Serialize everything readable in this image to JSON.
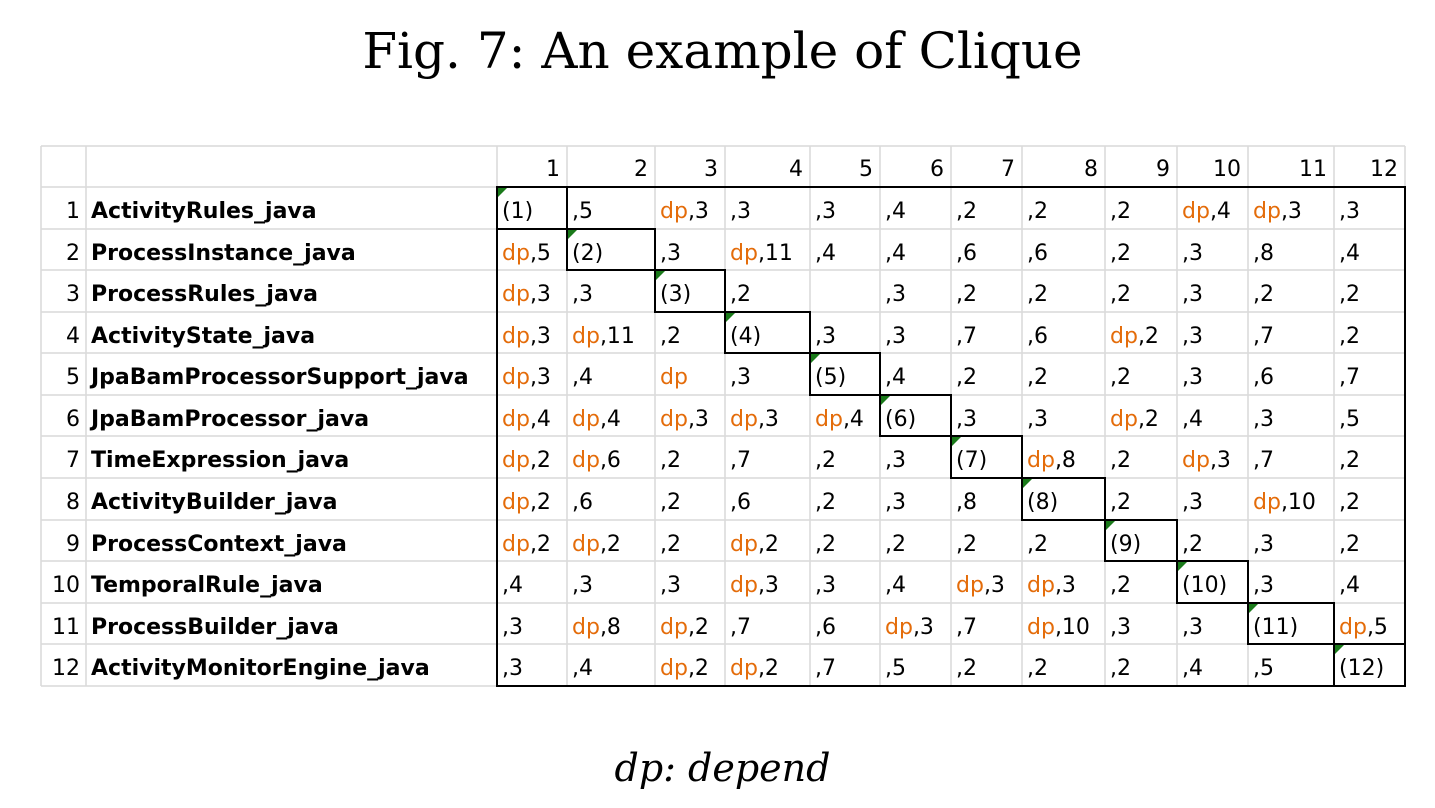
{
  "title": "Fig. 7: An example of Clique",
  "legend": "dp: depend",
  "colors": {
    "dp": "#e46c0a",
    "text": "#000000",
    "gridline": "#d9d9d9",
    "box": "#000000",
    "marker": "#1a7a1a"
  },
  "columns": [
    "1",
    "2",
    "3",
    "4",
    "5",
    "6",
    "7",
    "8",
    "9",
    "10",
    "11",
    "12"
  ],
  "rows": [
    {
      "index": "1",
      "name": "ActivityRules_java",
      "cells": [
        {
          "dp": "",
          "val": "(1)"
        },
        {
          "dp": "",
          "val": ",5"
        },
        {
          "dp": "dp",
          "val": ",3"
        },
        {
          "dp": "",
          "val": ",3"
        },
        {
          "dp": "",
          "val": ",3"
        },
        {
          "dp": "",
          "val": ",4"
        },
        {
          "dp": "",
          "val": ",2"
        },
        {
          "dp": "",
          "val": ",2"
        },
        {
          "dp": "",
          "val": ",2"
        },
        {
          "dp": "dp",
          "val": ",4"
        },
        {
          "dp": "dp",
          "val": ",3"
        },
        {
          "dp": "",
          "val": ",3"
        }
      ]
    },
    {
      "index": "2",
      "name": "ProcessInstance_java",
      "cells": [
        {
          "dp": "dp",
          "val": ",5"
        },
        {
          "dp": "",
          "val": "(2)"
        },
        {
          "dp": "",
          "val": ",3"
        },
        {
          "dp": "dp",
          "val": ",11"
        },
        {
          "dp": "",
          "val": ",4"
        },
        {
          "dp": "",
          "val": ",4"
        },
        {
          "dp": "",
          "val": ",6"
        },
        {
          "dp": "",
          "val": ",6"
        },
        {
          "dp": "",
          "val": ",2"
        },
        {
          "dp": "",
          "val": ",3"
        },
        {
          "dp": "",
          "val": ",8"
        },
        {
          "dp": "",
          "val": ",4"
        }
      ]
    },
    {
      "index": "3",
      "name": "ProcessRules_java",
      "cells": [
        {
          "dp": "dp",
          "val": ",3"
        },
        {
          "dp": "",
          "val": ",3"
        },
        {
          "dp": "",
          "val": "(3)"
        },
        {
          "dp": "",
          "val": ",2"
        },
        {
          "dp": "",
          "val": ""
        },
        {
          "dp": "",
          "val": ",3"
        },
        {
          "dp": "",
          "val": ",2"
        },
        {
          "dp": "",
          "val": ",2"
        },
        {
          "dp": "",
          "val": ",2"
        },
        {
          "dp": "",
          "val": ",3"
        },
        {
          "dp": "",
          "val": ",2"
        },
        {
          "dp": "",
          "val": ",2"
        }
      ]
    },
    {
      "index": "4",
      "name": "ActivityState_java",
      "cells": [
        {
          "dp": "dp",
          "val": ",3"
        },
        {
          "dp": "dp",
          "val": ",11"
        },
        {
          "dp": "",
          "val": ",2"
        },
        {
          "dp": "",
          "val": "(4)"
        },
        {
          "dp": "",
          "val": ",3"
        },
        {
          "dp": "",
          "val": ",3"
        },
        {
          "dp": "",
          "val": ",7"
        },
        {
          "dp": "",
          "val": ",6"
        },
        {
          "dp": "dp",
          "val": ",2"
        },
        {
          "dp": "",
          "val": ",3"
        },
        {
          "dp": "",
          "val": ",7"
        },
        {
          "dp": "",
          "val": ",2"
        }
      ]
    },
    {
      "index": "5",
      "name": "JpaBamProcessorSupport_java",
      "cells": [
        {
          "dp": "dp",
          "val": ",3"
        },
        {
          "dp": "",
          "val": ",4"
        },
        {
          "dp": "dp",
          "val": ""
        },
        {
          "dp": "",
          "val": ",3"
        },
        {
          "dp": "",
          "val": "(5)"
        },
        {
          "dp": "",
          "val": ",4"
        },
        {
          "dp": "",
          "val": ",2"
        },
        {
          "dp": "",
          "val": ",2"
        },
        {
          "dp": "",
          "val": ",2"
        },
        {
          "dp": "",
          "val": ",3"
        },
        {
          "dp": "",
          "val": ",6"
        },
        {
          "dp": "",
          "val": ",7"
        }
      ]
    },
    {
      "index": "6",
      "name": "JpaBamProcessor_java",
      "cells": [
        {
          "dp": "dp",
          "val": ",4"
        },
        {
          "dp": "dp",
          "val": ",4"
        },
        {
          "dp": "dp",
          "val": ",3"
        },
        {
          "dp": "dp",
          "val": ",3"
        },
        {
          "dp": "dp",
          "val": ",4"
        },
        {
          "dp": "",
          "val": "(6)"
        },
        {
          "dp": "",
          "val": ",3"
        },
        {
          "dp": "",
          "val": ",3"
        },
        {
          "dp": "dp",
          "val": ",2"
        },
        {
          "dp": "",
          "val": ",4"
        },
        {
          "dp": "",
          "val": ",3"
        },
        {
          "dp": "",
          "val": ",5"
        }
      ]
    },
    {
      "index": "7",
      "name": "TimeExpression_java",
      "cells": [
        {
          "dp": "dp",
          "val": ",2"
        },
        {
          "dp": "dp",
          "val": ",6"
        },
        {
          "dp": "",
          "val": ",2"
        },
        {
          "dp": "",
          "val": ",7"
        },
        {
          "dp": "",
          "val": ",2"
        },
        {
          "dp": "",
          "val": ",3"
        },
        {
          "dp": "",
          "val": "(7)"
        },
        {
          "dp": "dp",
          "val": ",8"
        },
        {
          "dp": "",
          "val": ",2"
        },
        {
          "dp": "dp",
          "val": ",3"
        },
        {
          "dp": "",
          "val": ",7"
        },
        {
          "dp": "",
          "val": ",2"
        }
      ]
    },
    {
      "index": "8",
      "name": "ActivityBuilder_java",
      "cells": [
        {
          "dp": "dp",
          "val": ",2"
        },
        {
          "dp": "",
          "val": ",6"
        },
        {
          "dp": "",
          "val": ",2"
        },
        {
          "dp": "",
          "val": ",6"
        },
        {
          "dp": "",
          "val": ",2"
        },
        {
          "dp": "",
          "val": ",3"
        },
        {
          "dp": "",
          "val": ",8"
        },
        {
          "dp": "",
          "val": "(8)"
        },
        {
          "dp": "",
          "val": ",2"
        },
        {
          "dp": "",
          "val": ",3"
        },
        {
          "dp": "dp",
          "val": ",10"
        },
        {
          "dp": "",
          "val": ",2"
        }
      ]
    },
    {
      "index": "9",
      "name": "ProcessContext_java",
      "cells": [
        {
          "dp": "dp",
          "val": ",2"
        },
        {
          "dp": "dp",
          "val": ",2"
        },
        {
          "dp": "",
          "val": ",2"
        },
        {
          "dp": "dp",
          "val": ",2"
        },
        {
          "dp": "",
          "val": ",2"
        },
        {
          "dp": "",
          "val": ",2"
        },
        {
          "dp": "",
          "val": ",2"
        },
        {
          "dp": "",
          "val": ",2"
        },
        {
          "dp": "",
          "val": "(9)"
        },
        {
          "dp": "",
          "val": ",2"
        },
        {
          "dp": "",
          "val": ",3"
        },
        {
          "dp": "",
          "val": ",2"
        }
      ]
    },
    {
      "index": "10",
      "name": "TemporalRule_java",
      "cells": [
        {
          "dp": "",
          "val": ",4"
        },
        {
          "dp": "",
          "val": ",3"
        },
        {
          "dp": "",
          "val": ",3"
        },
        {
          "dp": "dp",
          "val": ",3"
        },
        {
          "dp": "",
          "val": ",3"
        },
        {
          "dp": "",
          "val": ",4"
        },
        {
          "dp": "dp",
          "val": ",3"
        },
        {
          "dp": "dp",
          "val": ",3"
        },
        {
          "dp": "",
          "val": ",2"
        },
        {
          "dp": "",
          "val": "(10)"
        },
        {
          "dp": "",
          "val": ",3"
        },
        {
          "dp": "",
          "val": ",4"
        }
      ]
    },
    {
      "index": "11",
      "name": "ProcessBuilder_java",
      "cells": [
        {
          "dp": "",
          "val": ",3"
        },
        {
          "dp": "dp",
          "val": ",8"
        },
        {
          "dp": "dp",
          "val": ",2"
        },
        {
          "dp": "",
          "val": ",7"
        },
        {
          "dp": "",
          "val": ",6"
        },
        {
          "dp": "dp",
          "val": ",3"
        },
        {
          "dp": "",
          "val": ",7"
        },
        {
          "dp": "dp",
          "val": ",10"
        },
        {
          "dp": "",
          "val": ",3"
        },
        {
          "dp": "",
          "val": ",3"
        },
        {
          "dp": "",
          "val": "(11)"
        },
        {
          "dp": "dp",
          "val": ",5"
        }
      ]
    },
    {
      "index": "12",
      "name": "ActivityMonitorEngine_java",
      "cells": [
        {
          "dp": "",
          "val": ",3"
        },
        {
          "dp": "",
          "val": ",4"
        },
        {
          "dp": "dp",
          "val": ",2"
        },
        {
          "dp": "dp",
          "val": ",2"
        },
        {
          "dp": "",
          "val": ",7"
        },
        {
          "dp": "",
          "val": ",5"
        },
        {
          "dp": "",
          "val": ",2"
        },
        {
          "dp": "",
          "val": ",2"
        },
        {
          "dp": "",
          "val": ",2"
        },
        {
          "dp": "",
          "val": ",4"
        },
        {
          "dp": "",
          "val": ",5"
        },
        {
          "dp": "",
          "val": "(12)"
        }
      ]
    }
  ]
}
